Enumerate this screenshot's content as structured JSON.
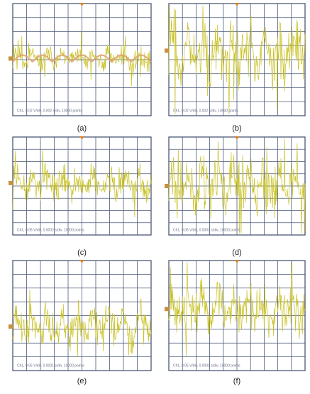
{
  "panels": [
    {
      "caption": "(a)",
      "info": "Ch1, 0.02 V/div, 0.002 s/div, 10000 points"
    },
    {
      "caption": "(b)",
      "info": "Ch1, 0.02 V/div, 0.002 s/div, 10000 points"
    },
    {
      "caption": "(c)",
      "info": "Ch1, 0.05 V/div, 0.0002 s/div, 10000 points"
    },
    {
      "caption": "(d)",
      "info": "Ch1, 0.05 V/div, 0.0002 s/div, 10000 points"
    },
    {
      "caption": "(e)",
      "info": "Ch1, 0.05 V/div, 0.0001 s/div, 10000 points"
    },
    {
      "caption": "(f)",
      "info": "Ch1, 0.05 V/div, 0.0001 s/div, 10000 points"
    }
  ]
}
